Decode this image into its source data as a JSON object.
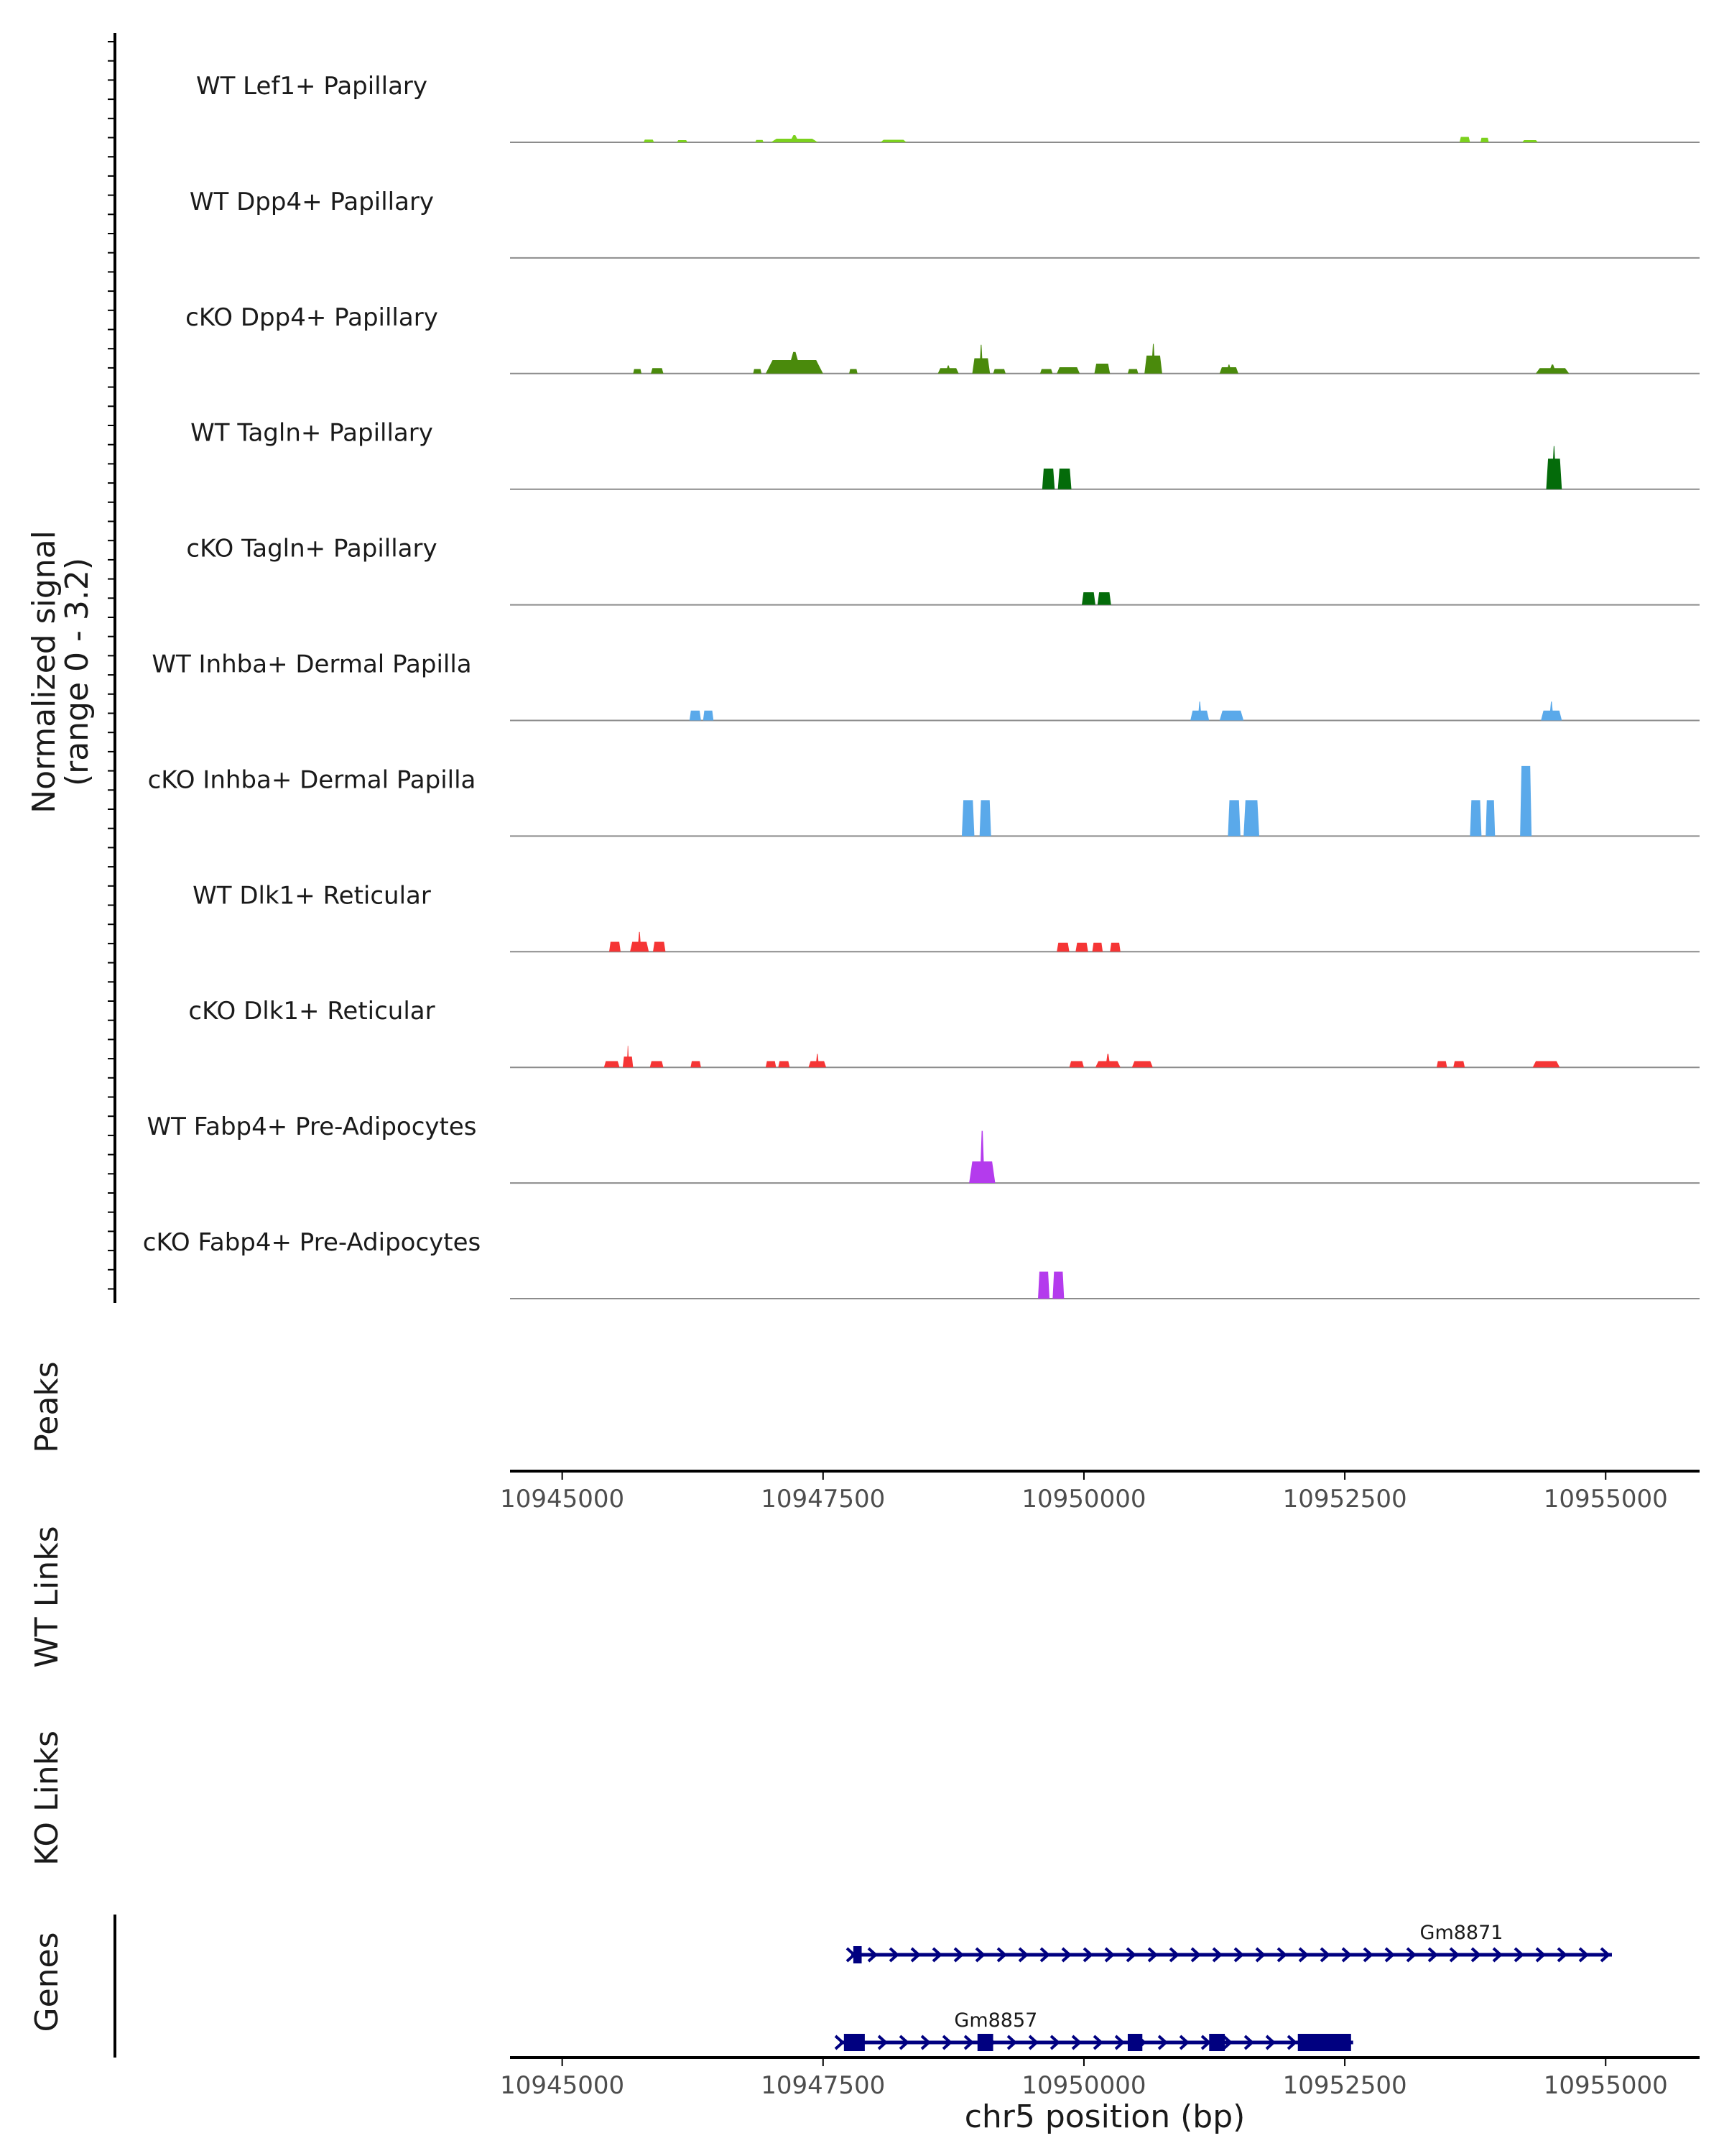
{
  "chart_data": {
    "type": "genome-coverage",
    "region": {
      "chrom": "chr5",
      "start": 10944500,
      "end": 10955900
    },
    "xlabel": "chr5 position (bp)",
    "xticks": [
      10945000,
      10947500,
      10950000,
      10952500,
      10955000
    ],
    "xtick_labels": [
      "10945000",
      "10947500",
      "10950000",
      "10952500",
      "10955000"
    ],
    "coverage_ylabel": [
      "Normalized signal",
      "(range 0 - 3.2)"
    ],
    "ylim": [
      0,
      3.2
    ],
    "colors": {
      "lef1": "#7cd11e",
      "dpp4": "#4a8a0c",
      "tagln": "#046b0a",
      "inhba": "#5aa9ea",
      "dlk1": "#f53535",
      "fabp4": "#b43bed",
      "gene": "#000080",
      "baseline": "#8c8c8c",
      "axis": "#000000"
    },
    "tracks": [
      {
        "label": "WT Lef1+ Papillary",
        "color": "#7cd11e",
        "peaks": [
          [
            10945780,
            10945880,
            0.15
          ],
          [
            10946100,
            10946200,
            0.12
          ],
          [
            10946850,
            10946930,
            0.13
          ],
          [
            10947000,
            10947450,
            0.2,
            0.4
          ],
          [
            10948050,
            10948300,
            0.14
          ],
          [
            10953600,
            10953700,
            0.3
          ],
          [
            10953800,
            10953880,
            0.25
          ],
          [
            10954200,
            10954350,
            0.12
          ]
        ]
      },
      {
        "label": "WT Dpp4+ Papillary",
        "color": "#4a8a0c",
        "peaks": []
      },
      {
        "label": "cKO Dpp4+ Papillary",
        "color": "#4a8a0c",
        "peaks": [
          [
            10945680,
            10945760,
            0.25
          ],
          [
            10945850,
            10945970,
            0.3
          ],
          [
            10946830,
            10946910,
            0.25
          ],
          [
            10946950,
            10947500,
            0.75,
            1.2
          ],
          [
            10947750,
            10947830,
            0.25
          ],
          [
            10948600,
            10948800,
            0.3,
            0.45
          ],
          [
            10948930,
            10949100,
            0.85,
            1.6
          ],
          [
            10949130,
            10949250,
            0.25
          ],
          [
            10949580,
            10949700,
            0.25
          ],
          [
            10949740,
            10949960,
            0.35
          ],
          [
            10950100,
            10950250,
            0.55
          ],
          [
            10950420,
            10950520,
            0.25
          ],
          [
            10950580,
            10950750,
            1.0,
            1.65
          ],
          [
            10951300,
            10951480,
            0.35,
            0.5
          ],
          [
            10954330,
            10954650,
            0.3,
            0.5
          ]
        ]
      },
      {
        "label": "WT Tagln+ Papillary",
        "color": "#046b0a",
        "peaks": [
          [
            10949600,
            10949720,
            1.15
          ],
          [
            10949750,
            10949880,
            1.15
          ],
          [
            10954430,
            10954580,
            1.7,
            2.4
          ]
        ]
      },
      {
        "label": "cKO Tagln+ Papillary",
        "color": "#046b0a",
        "peaks": [
          [
            10949980,
            10950110,
            0.7
          ],
          [
            10950130,
            10950260,
            0.7
          ]
        ]
      },
      {
        "label": "WT Inhba+ Dermal Papilla",
        "color": "#5aa9ea",
        "peaks": [
          [
            10946220,
            10946330,
            0.55
          ],
          [
            10946350,
            10946450,
            0.55
          ],
          [
            10951020,
            10951200,
            0.55,
            1.05
          ],
          [
            10951300,
            10951530,
            0.55
          ],
          [
            10954380,
            10954580,
            0.55,
            1.05
          ]
        ]
      },
      {
        "label": "cKO Inhba+ Dermal Papilla",
        "color": "#5aa9ea",
        "peaks": [
          [
            10948830,
            10948950,
            2.0
          ],
          [
            10949000,
            10949110,
            2.0
          ],
          [
            10951380,
            10951500,
            2.0
          ],
          [
            10951530,
            10951680,
            2.0
          ],
          [
            10953700,
            10953810,
            2.0
          ],
          [
            10953850,
            10953940,
            2.0
          ],
          [
            10954180,
            10954290,
            3.9
          ]
        ]
      },
      {
        "label": "WT Dlk1+ Reticular",
        "color": "#f53535",
        "peaks": [
          [
            10945450,
            10945560,
            0.55
          ],
          [
            10945650,
            10945830,
            0.55,
            1.1
          ],
          [
            10945870,
            10945990,
            0.55
          ],
          [
            10949740,
            10949860,
            0.5
          ],
          [
            10949920,
            10950040,
            0.5
          ],
          [
            10950080,
            10950180,
            0.5
          ],
          [
            10950250,
            10950350,
            0.5
          ]
        ]
      },
      {
        "label": "cKO Dlk1+ Reticular",
        "color": "#f53535",
        "peaks": [
          [
            10945400,
            10945550,
            0.35
          ],
          [
            10945580,
            10945680,
            0.6,
            1.2
          ],
          [
            10945840,
            10945970,
            0.35
          ],
          [
            10946230,
            10946330,
            0.35
          ],
          [
            10946950,
            10947050,
            0.35
          ],
          [
            10947070,
            10947180,
            0.35
          ],
          [
            10947360,
            10947530,
            0.35,
            0.75
          ],
          [
            10949860,
            10950000,
            0.35
          ],
          [
            10950110,
            10950350,
            0.35,
            0.75
          ],
          [
            10950460,
            10950660,
            0.35
          ],
          [
            10953380,
            10953480,
            0.35
          ],
          [
            10953540,
            10953650,
            0.35
          ],
          [
            10954300,
            10954560,
            0.35
          ]
        ]
      },
      {
        "label": "WT Fabp4+ Pre-Adipocytes",
        "color": "#b43bed",
        "peaks": [
          [
            10948900,
            10949150,
            1.2,
            2.9
          ]
        ]
      },
      {
        "label": "cKO Fabp4+ Pre-Adipocytes",
        "color": "#b43bed",
        "peaks": [
          [
            10949560,
            10949670,
            1.5
          ],
          [
            10949700,
            10949810,
            1.5
          ]
        ]
      }
    ],
    "section_labels": {
      "peaks": "Peaks",
      "wt_links": "WT Links",
      "ko_links": "KO Links",
      "genes": "Genes"
    },
    "genes": [
      {
        "name": "Gm8871",
        "start": 10947770,
        "end": 10955060,
        "strand": "+",
        "exons": [
          [
            10947790,
            10947870
          ]
        ]
      },
      {
        "name": "Gm8857",
        "start": 10947660,
        "end": 10952580,
        "strand": "+",
        "exons": [
          [
            10947700,
            10947900
          ],
          [
            10948980,
            10949130
          ],
          [
            10950420,
            10950560
          ],
          [
            10951200,
            10951350
          ],
          [
            10952050,
            10952560
          ]
        ]
      }
    ]
  }
}
